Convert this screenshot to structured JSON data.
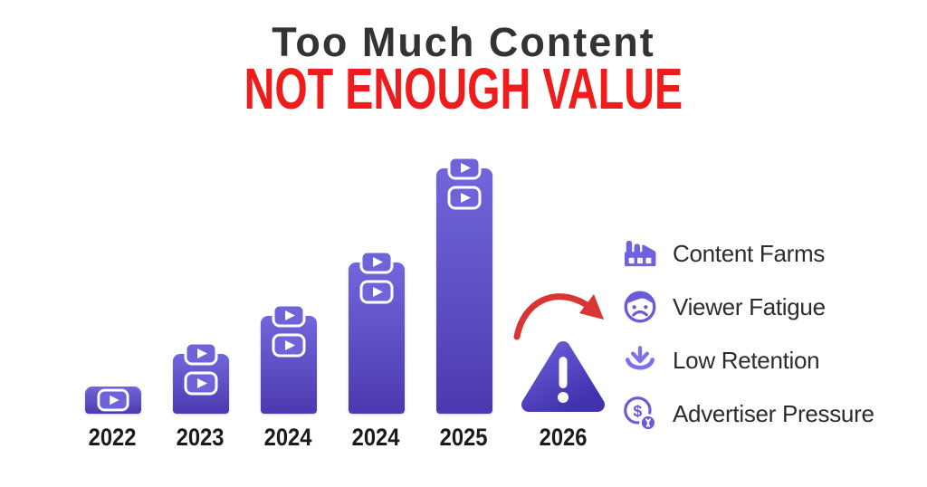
{
  "header": {
    "title": "Too Much Content",
    "subtitle": "NOT ENOUGH VALUE"
  },
  "chart_data": {
    "type": "bar",
    "title": "Too Much Content — Not Enough Value",
    "categories": [
      "2022",
      "2023",
      "2024",
      "2024",
      "2025",
      "2026"
    ],
    "values": [
      30,
      66,
      108,
      167,
      271,
      null
    ],
    "value_note": "no numeric axis shown; values are relative bar heights in px, 2026 shows a warning triangle instead of a bar",
    "play_icon_count": [
      1,
      2,
      2,
      2,
      2,
      0
    ],
    "final_slot": {
      "year": "2026",
      "marker": "warning-triangle-icon"
    },
    "xlabel": "",
    "ylabel": "",
    "grid": false,
    "legend_position": "right"
  },
  "legend": {
    "items": [
      {
        "icon": "factory-icon",
        "label": "Content Farms"
      },
      {
        "icon": "sad-face-icon",
        "label": "Viewer Fatigue"
      },
      {
        "icon": "download-arrow-icon",
        "label": "Low Retention"
      },
      {
        "icon": "dollar-pressure-icon",
        "label": "Advertiser Pressure"
      }
    ]
  },
  "annotations": {
    "trend_arrow": "red curved arrow pointing from 2025 bar down toward 2026 warning"
  },
  "colors": {
    "title_text": "#333333",
    "subtitle_red": "#f01c1c",
    "bar_gradient_top": "#7166dc",
    "bar_gradient_bottom": "#4b3aae",
    "warning_gradient_top": "#6a5ed6",
    "warning_gradient_bottom": "#4132ae",
    "legend_icon_purple": "#6f62e0",
    "arrow_red": "#d83533",
    "label_dark": "#1b1b1b"
  }
}
